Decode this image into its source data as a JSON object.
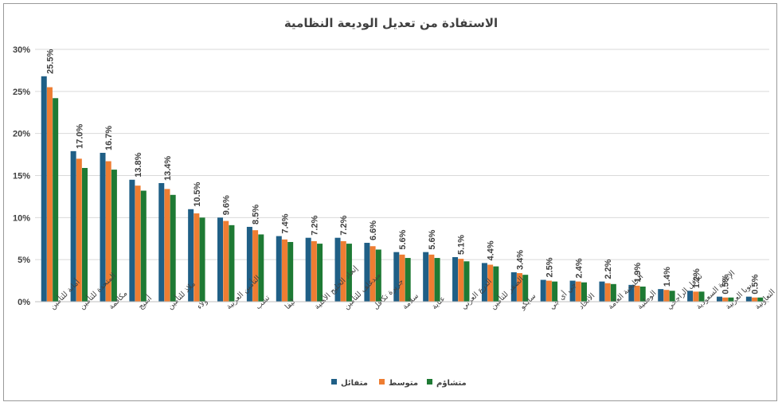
{
  "chart_data": {
    "type": "bar",
    "title": "الاستفادة من تعديل الوديعة النظامية",
    "xlabel": "",
    "ylabel": "",
    "ylim": [
      0,
      30
    ],
    "yticks": [
      "0%",
      "5%",
      "10%",
      "15%",
      "20%",
      "25%",
      "30%"
    ],
    "grid": true,
    "legend_position": "bottom",
    "categories": [
      "أمانة للتأمين",
      "المتحدة للتأمين",
      "مكافمة",
      "أسيج",
      "ملاذ للتأمين",
      "ولاء",
      "التأمين العربية",
      "تشب",
      "ليفا",
      "إتحاد الخليج الأهلية",
      "ميدغلف للتأمين",
      "جزيرة تكافل",
      "سلامة",
      "عناية",
      "الدرع العربي",
      "الصقر للتأمين",
      "سايكو",
      "جي أي جي",
      "الاتحاد",
      "الخليجية العامة",
      "الوطنية",
      "تكافل الراجحي",
      "الإعادة السعودية",
      "بوبا العربية",
      "التعاونية"
    ],
    "data_labels": [
      "25.5%",
      "17.0%",
      "16.7%",
      "13.8%",
      "13.4%",
      "10.5%",
      "9.6%",
      "8.5%",
      "7.4%",
      "7.2%",
      "7.2%",
      "6.6%",
      "5.6%",
      "5.6%",
      "5.1%",
      "4.4%",
      "3.4%",
      "2.5%",
      "2.4%",
      "2.2%",
      "1.9%",
      "1.4%",
      "1.2%",
      "0.5%",
      "0.5%"
    ],
    "series": [
      {
        "name": "متفائل",
        "color": "#1f5f86",
        "values": [
          26.8,
          17.9,
          17.7,
          14.5,
          14.1,
          11.0,
          10.0,
          8.9,
          7.8,
          7.6,
          7.6,
          7.0,
          5.9,
          5.9,
          5.3,
          4.6,
          3.5,
          2.6,
          2.5,
          2.4,
          2.0,
          1.5,
          1.3,
          0.6,
          0.6
        ]
      },
      {
        "name": "متوسط",
        "color": "#ee7d32",
        "values": [
          25.5,
          17.0,
          16.7,
          13.8,
          13.4,
          10.5,
          9.6,
          8.5,
          7.4,
          7.2,
          7.2,
          6.6,
          5.6,
          5.6,
          5.1,
          4.4,
          3.4,
          2.5,
          2.4,
          2.2,
          1.9,
          1.4,
          1.2,
          0.5,
          0.5
        ]
      },
      {
        "name": "متشاؤم",
        "color": "#1e7a34",
        "values": [
          24.2,
          15.9,
          15.7,
          13.2,
          12.7,
          10.0,
          9.1,
          8.0,
          7.1,
          6.9,
          6.9,
          6.2,
          5.2,
          5.2,
          4.8,
          4.2,
          3.2,
          2.4,
          2.3,
          2.1,
          1.8,
          1.3,
          1.2,
          0.5,
          0.5
        ]
      }
    ]
  }
}
